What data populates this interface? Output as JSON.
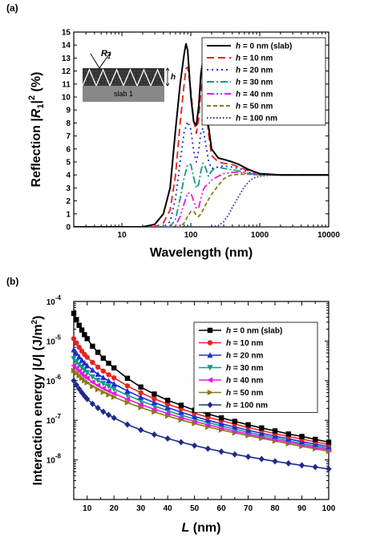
{
  "chart_data": [
    {
      "panel": "(a)",
      "type": "line",
      "xscale": "log",
      "xlim": [
        2,
        10000
      ],
      "ylim": [
        0,
        15
      ],
      "xlabel": "Wavelength (nm)",
      "ylabel": "Reflection |R1|2 (%)",
      "ylabel_parts": [
        "Reflection |",
        "R",
        "1",
        "|",
        "2",
        " (%)"
      ],
      "xticks": [
        10,
        100,
        1000,
        10000
      ],
      "xtick_labels": [
        "10",
        "100",
        "1000",
        "10000"
      ],
      "yticks": [
        0,
        1,
        2,
        3,
        4,
        5,
        6,
        7,
        8,
        9,
        10,
        11,
        12,
        13,
        14,
        15
      ],
      "legend_position": "top-right",
      "inset": {
        "slab_label": "slab 1",
        "r_label": "R",
        "r_sub": "1",
        "h_label": "h"
      },
      "series": [
        {
          "name": "h = 0 nm (slab)",
          "h_label": "h",
          "rest": " = 0 nm (slab)",
          "color": "#000000",
          "dash": "solid",
          "x": [
            2,
            20,
            30,
            40,
            50,
            60,
            70,
            80,
            85,
            90,
            100,
            110,
            120,
            130,
            140,
            150,
            160,
            180,
            200,
            250,
            300,
            400,
            500,
            700,
            1000,
            2000,
            10000
          ],
          "y": [
            0,
            0,
            0.2,
            1.0,
            3.0,
            7.5,
            11.0,
            13.3,
            14.1,
            13.6,
            10.0,
            8.1,
            7.8,
            9.3,
            11.8,
            12.8,
            11.0,
            7.8,
            6.0,
            5.3,
            5.2,
            5.0,
            4.8,
            4.4,
            4.1,
            4.0,
            4.0
          ]
        },
        {
          "name": "h = 10 nm",
          "h_label": "h",
          "rest": " = 10 nm",
          "color": "#e8231f",
          "dash": "9,5",
          "x": [
            2,
            30,
            40,
            50,
            60,
            70,
            80,
            85,
            90,
            100,
            110,
            120,
            130,
            140,
            150,
            160,
            180,
            200,
            250,
            300,
            400,
            500,
            700,
            1000,
            2000,
            10000
          ],
          "y": [
            0,
            0,
            0.3,
            1.3,
            4.0,
            8.0,
            11.0,
            12.2,
            12.3,
            10.5,
            8.2,
            7.2,
            8.3,
            10.5,
            11.4,
            10.0,
            7.2,
            5.5,
            5.0,
            4.9,
            4.8,
            4.6,
            4.3,
            4.1,
            4.0,
            4.0
          ]
        },
        {
          "name": "h = 20 nm",
          "h_label": "h",
          "rest": " = 20 nm",
          "color": "#1f2bd6",
          "dash": "2,4",
          "x": [
            2,
            40,
            50,
            60,
            70,
            80,
            90,
            100,
            110,
            120,
            130,
            140,
            150,
            160,
            180,
            200,
            250,
            300,
            400,
            500,
            700,
            1000,
            2000,
            10000
          ],
          "y": [
            0,
            0,
            0.4,
            2.2,
            5.0,
            7.3,
            8.1,
            7.5,
            5.8,
            5.0,
            5.9,
            7.3,
            7.6,
            6.8,
            5.1,
            4.5,
            4.6,
            4.7,
            4.6,
            4.5,
            4.2,
            4.05,
            4.0,
            4.0
          ]
        },
        {
          "name": "h = 30 nm",
          "h_label": "h",
          "rest": " = 30 nm",
          "color": "#11998a",
          "dash": "9,3,2,3",
          "x": [
            2,
            50,
            60,
            70,
            80,
            90,
            100,
            110,
            120,
            130,
            140,
            150,
            160,
            180,
            200,
            230,
            250,
            300,
            400,
            500,
            700,
            1000,
            2000,
            10000
          ],
          "y": [
            0,
            0,
            0.6,
            2.2,
            3.8,
            4.8,
            4.8,
            3.8,
            3.0,
            3.3,
            4.3,
            4.9,
            4.7,
            3.9,
            4.3,
            4.6,
            4.6,
            4.5,
            4.4,
            4.3,
            4.1,
            4.0,
            4.0,
            4.0
          ]
        },
        {
          "name": "h = 40 nm",
          "h_label": "h",
          "rest": " = 40 nm",
          "color": "#e619e0",
          "dash": "9,3,2,3,2,3",
          "x": [
            2,
            55,
            60,
            70,
            80,
            90,
            100,
            110,
            120,
            130,
            140,
            150,
            160,
            180,
            200,
            250,
            300,
            400,
            500,
            700,
            1000,
            2000,
            10000
          ],
          "y": [
            0,
            0,
            0.1,
            0.8,
            1.8,
            2.6,
            2.6,
            2.0,
            1.4,
            1.5,
            2.2,
            2.8,
            3.1,
            3.3,
            3.6,
            3.9,
            4.1,
            4.2,
            4.2,
            4.1,
            4.0,
            4.0,
            4.0
          ]
        },
        {
          "name": "h = 50 nm",
          "h_label": "h",
          "rest": " = 50 nm",
          "color": "#8a7a12",
          "dash": "5,3",
          "x": [
            2,
            70,
            80,
            90,
            100,
            110,
            120,
            130,
            140,
            150,
            160,
            180,
            200,
            250,
            300,
            350,
            400,
            500,
            700,
            1000,
            2000,
            10000
          ],
          "y": [
            0,
            0,
            0.3,
            0.8,
            1.2,
            1.2,
            0.9,
            0.8,
            1.0,
            1.3,
            1.6,
            2.1,
            2.5,
            3.2,
            3.7,
            3.9,
            4.0,
            4.05,
            4.05,
            4.0,
            4.0,
            4.0
          ]
        },
        {
          "name": "h = 100 nm",
          "h_label": "h",
          "rest": " = 100 nm",
          "color": "#1d2a8c",
          "dash": "1.5,2.5",
          "x": [
            2,
            200,
            250,
            300,
            350,
            400,
            500,
            600,
            700,
            800,
            1000,
            1500,
            2000,
            10000
          ],
          "y": [
            0,
            0,
            0.1,
            0.4,
            0.9,
            1.5,
            2.4,
            3.1,
            3.5,
            3.75,
            3.9,
            4.0,
            4.0,
            4.0
          ]
        }
      ]
    },
    {
      "panel": "(b)",
      "type": "line",
      "yscale": "log",
      "xlim": [
        5,
        100
      ],
      "ylim": [
        1e-09,
        0.0001
      ],
      "xlabel": "L (nm)",
      "xlabel_parts": [
        "L",
        " (nm)"
      ],
      "ylabel": "Interaction energy |U| (J/m2)",
      "ylabel_parts": [
        "Interaction energy |",
        "U",
        "| (J/m",
        "2",
        ")"
      ],
      "xticks": [
        10,
        20,
        30,
        40,
        50,
        60,
        70,
        80,
        90,
        100
      ],
      "ytick_exponents": [
        -8,
        -7,
        -6,
        -5,
        -4
      ],
      "legend_position": "top-right",
      "x": [
        5,
        6,
        7,
        8,
        9,
        10,
        12,
        14,
        16,
        18,
        20,
        25,
        30,
        35,
        40,
        45,
        50,
        55,
        60,
        65,
        70,
        75,
        80,
        85,
        90,
        95,
        100
      ],
      "series": [
        {
          "name": "h = 0 nm (slab)",
          "h_label": "h",
          "rest": " = 0 nm (slab)",
          "color": "#000000",
          "marker": "square",
          "y": [
            5e-05,
            3.5e-05,
            2.5e-05,
            1.9e-05,
            1.45e-05,
            1.15e-05,
            7.4e-06,
            5.2e-06,
            3.7e-06,
            2.75e-06,
            2.1e-06,
            1.15e-06,
            6.9e-07,
            4.6e-07,
            3.2e-07,
            2.4e-07,
            1.8e-07,
            1.45e-07,
            1.15e-07,
            9.4e-08,
            7.7e-08,
            6.4e-08,
            5.4e-08,
            4.5e-08,
            3.9e-08,
            3.3e-08,
            2.8e-08
          ]
        },
        {
          "name": "h = 10 nm",
          "h_label": "h",
          "rest": " = 10 nm",
          "color": "#e8231f",
          "marker": "circle",
          "y": [
            1.15e-05,
            9e-06,
            7e-06,
            5.6e-06,
            4.6e-06,
            3.9e-06,
            2.9e-06,
            2.2e-06,
            1.75e-06,
            1.42e-06,
            1.18e-06,
            7.4e-07,
            4.95e-07,
            3.5e-07,
            2.55e-07,
            1.95e-07,
            1.5e-07,
            1.2e-07,
            9.8e-08,
            8e-08,
            6.6e-08,
            5.5e-08,
            4.6e-08,
            3.9e-08,
            3.35e-08,
            2.85e-08,
            2.45e-08
          ]
        },
        {
          "name": "h = 20 nm",
          "h_label": "h",
          "rest": " = 20 nm",
          "color": "#1f2bd6",
          "marker": "triangle-up",
          "y": [
            6e-06,
            4.9e-06,
            4e-06,
            3.3e-06,
            2.8e-06,
            2.4e-06,
            1.85e-06,
            1.45e-06,
            1.2e-06,
            9.9e-07,
            8.3e-07,
            5.5e-07,
            3.85e-07,
            2.8e-07,
            2.1e-07,
            1.6e-07,
            1.25e-07,
            1e-07,
            8.2e-08,
            6.8e-08,
            5.6e-08,
            4.7e-08,
            4e-08,
            3.4e-08,
            2.9e-08,
            2.5e-08,
            2.15e-08
          ]
        },
        {
          "name": "h = 30 nm",
          "h_label": "h",
          "rest": " = 30 nm",
          "color": "#11998a",
          "marker": "triangle-down",
          "y": [
            3.6e-06,
            3e-06,
            2.5e-06,
            2.15e-06,
            1.85e-06,
            1.6e-06,
            1.25e-06,
            1.02e-06,
            8.5e-07,
            7.2e-07,
            6.2e-07,
            4.3e-07,
            3.1e-07,
            2.3e-07,
            1.75e-07,
            1.35e-07,
            1.08e-07,
            8.8e-08,
            7.2e-08,
            6e-08,
            5e-08,
            4.2e-08,
            3.6e-08,
            3.05e-08,
            2.6e-08,
            2.25e-08,
            1.95e-08
          ]
        },
        {
          "name": "h = 40 nm",
          "h_label": "h",
          "rest": " = 40 nm",
          "color": "#e619e0",
          "marker": "triangle-left",
          "y": [
            2.4e-06,
            2.05e-06,
            1.75e-06,
            1.5e-06,
            1.3e-06,
            1.15e-06,
            9.2e-07,
            7.6e-07,
            6.4e-07,
            5.5e-07,
            4.75e-07,
            3.4e-07,
            2.5e-07,
            1.9e-07,
            1.48e-07,
            1.17e-07,
            9.4e-08,
            7.7e-08,
            6.4e-08,
            5.3e-08,
            4.5e-08,
            3.8e-08,
            3.25e-08,
            2.8e-08,
            2.4e-08,
            2.05e-08,
            1.8e-08
          ]
        },
        {
          "name": "h = 50 nm",
          "h_label": "h",
          "rest": " = 50 nm",
          "color": "#8a7a12",
          "marker": "triangle-right",
          "y": [
            1.8e-06,
            1.55e-06,
            1.33e-06,
            1.15e-06,
            1e-06,
            8.9e-07,
            7.2e-07,
            6e-07,
            5.1e-07,
            4.4e-07,
            3.85e-07,
            2.8e-07,
            2.1e-07,
            1.62e-07,
            1.28e-07,
            1.02e-07,
            8.3e-08,
            6.8e-08,
            5.7e-08,
            4.8e-08,
            4.1e-08,
            3.5e-08,
            3e-08,
            2.55e-08,
            2.2e-08,
            1.9e-08,
            1.65e-08
          ]
        },
        {
          "name": "h = 100 nm",
          "h_label": "h",
          "rest": " = 100 nm",
          "color": "#1d2a8c",
          "marker": "diamond",
          "y": [
            1e-06,
            7.8e-07,
            6.2e-07,
            5e-07,
            4.1e-07,
            3.45e-07,
            2.6e-07,
            2.05e-07,
            1.65e-07,
            1.37e-07,
            1.15e-07,
            7.8e-08,
            5.7e-08,
            4.35e-08,
            3.45e-08,
            2.8e-08,
            2.3e-08,
            1.92e-08,
            1.62e-08,
            1.38e-08,
            1.2e-08,
            1.05e-08,
            9.2e-09,
            8.2e-09,
            7.3e-09,
            6.6e-09,
            5.9e-09
          ]
        }
      ]
    }
  ]
}
